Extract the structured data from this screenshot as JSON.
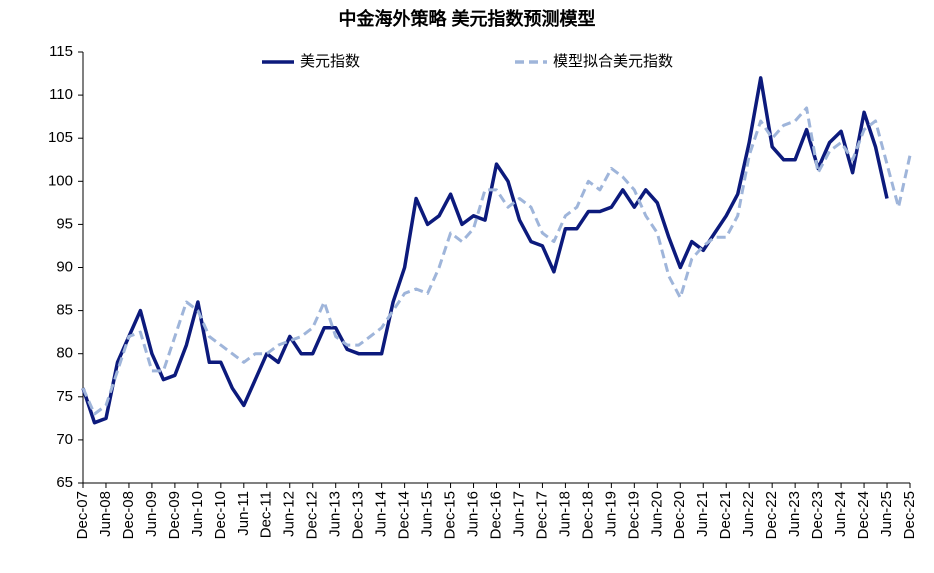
{
  "chart_data": {
    "type": "line",
    "title": "中金海外策略 美元指数预测模型",
    "categories": [
      "Dec-07",
      null,
      "Jun-08",
      null,
      "Dec-08",
      null,
      "Jun-09",
      null,
      "Dec-09",
      null,
      "Jun-10",
      null,
      "Dec-10",
      null,
      "Jun-11",
      null,
      "Dec-11",
      null,
      "Jun-12",
      null,
      "Dec-12",
      null,
      "Jun-13",
      null,
      "Dec-13",
      null,
      "Jun-14",
      null,
      "Dec-14",
      null,
      "Jun-15",
      null,
      "Dec-15",
      null,
      "Jun-16",
      null,
      "Dec-16",
      null,
      "Jun-17",
      null,
      "Dec-17",
      null,
      "Jun-18",
      null,
      "Dec-18",
      null,
      "Jun-19",
      null,
      "Dec-19",
      null,
      "Jun-20",
      null,
      "Dec-20",
      null,
      "Jun-21",
      null,
      "Dec-21",
      null,
      "Jun-22",
      null,
      "Dec-22",
      null,
      "Jun-23",
      null,
      "Dec-23",
      null,
      "Jun-24",
      null,
      "Dec-24",
      null,
      "Jun-25",
      null,
      "Dec-25"
    ],
    "series": [
      {
        "name": "美元指数",
        "color": "#0c1a7c",
        "dashed": false,
        "values": [
          76,
          72,
          72.5,
          79,
          82,
          85,
          80,
          77,
          77.5,
          81,
          86,
          79,
          79,
          76,
          74,
          77,
          80,
          79,
          82,
          80,
          80,
          83,
          83,
          80.5,
          80,
          80,
          80,
          86,
          90,
          98,
          95,
          96,
          98.5,
          95,
          96,
          95.5,
          102,
          100,
          95.5,
          93,
          92.5,
          89.5,
          94.5,
          94.5,
          96.5,
          96.5,
          97,
          99,
          97,
          99,
          97.5,
          93.5,
          90,
          93,
          92,
          94,
          96,
          98.5,
          104.5,
          112,
          104,
          102.5,
          102.5,
          106,
          101.5,
          104.5,
          105.8,
          101,
          108,
          104,
          98,
          null,
          null
        ]
      },
      {
        "name": "模型拟合美元指数",
        "color": "#9fb5da",
        "dashed": true,
        "values": [
          76,
          73,
          74,
          78,
          82,
          82.5,
          78,
          78,
          82,
          86,
          85,
          82,
          81,
          80,
          79,
          80,
          80,
          81,
          81.5,
          82,
          83,
          86,
          82,
          81,
          81,
          82,
          83,
          85,
          87,
          87.5,
          87,
          90,
          94,
          93,
          94.5,
          99,
          99,
          97,
          98,
          97,
          94,
          93,
          96,
          97,
          100,
          99,
          101.5,
          100.5,
          99,
          96,
          94,
          89,
          86.5,
          91,
          92.5,
          93.5,
          93.5,
          96,
          103,
          107,
          105,
          106.5,
          107,
          108.5,
          101,
          103.5,
          104.5,
          102.5,
          106,
          107,
          102,
          97,
          103
        ]
      }
    ],
    "ylim": [
      65,
      115
    ],
    "yticks": [
      65,
      70,
      75,
      80,
      85,
      90,
      95,
      100,
      105,
      110,
      115
    ],
    "grid": false,
    "legend": "top"
  }
}
